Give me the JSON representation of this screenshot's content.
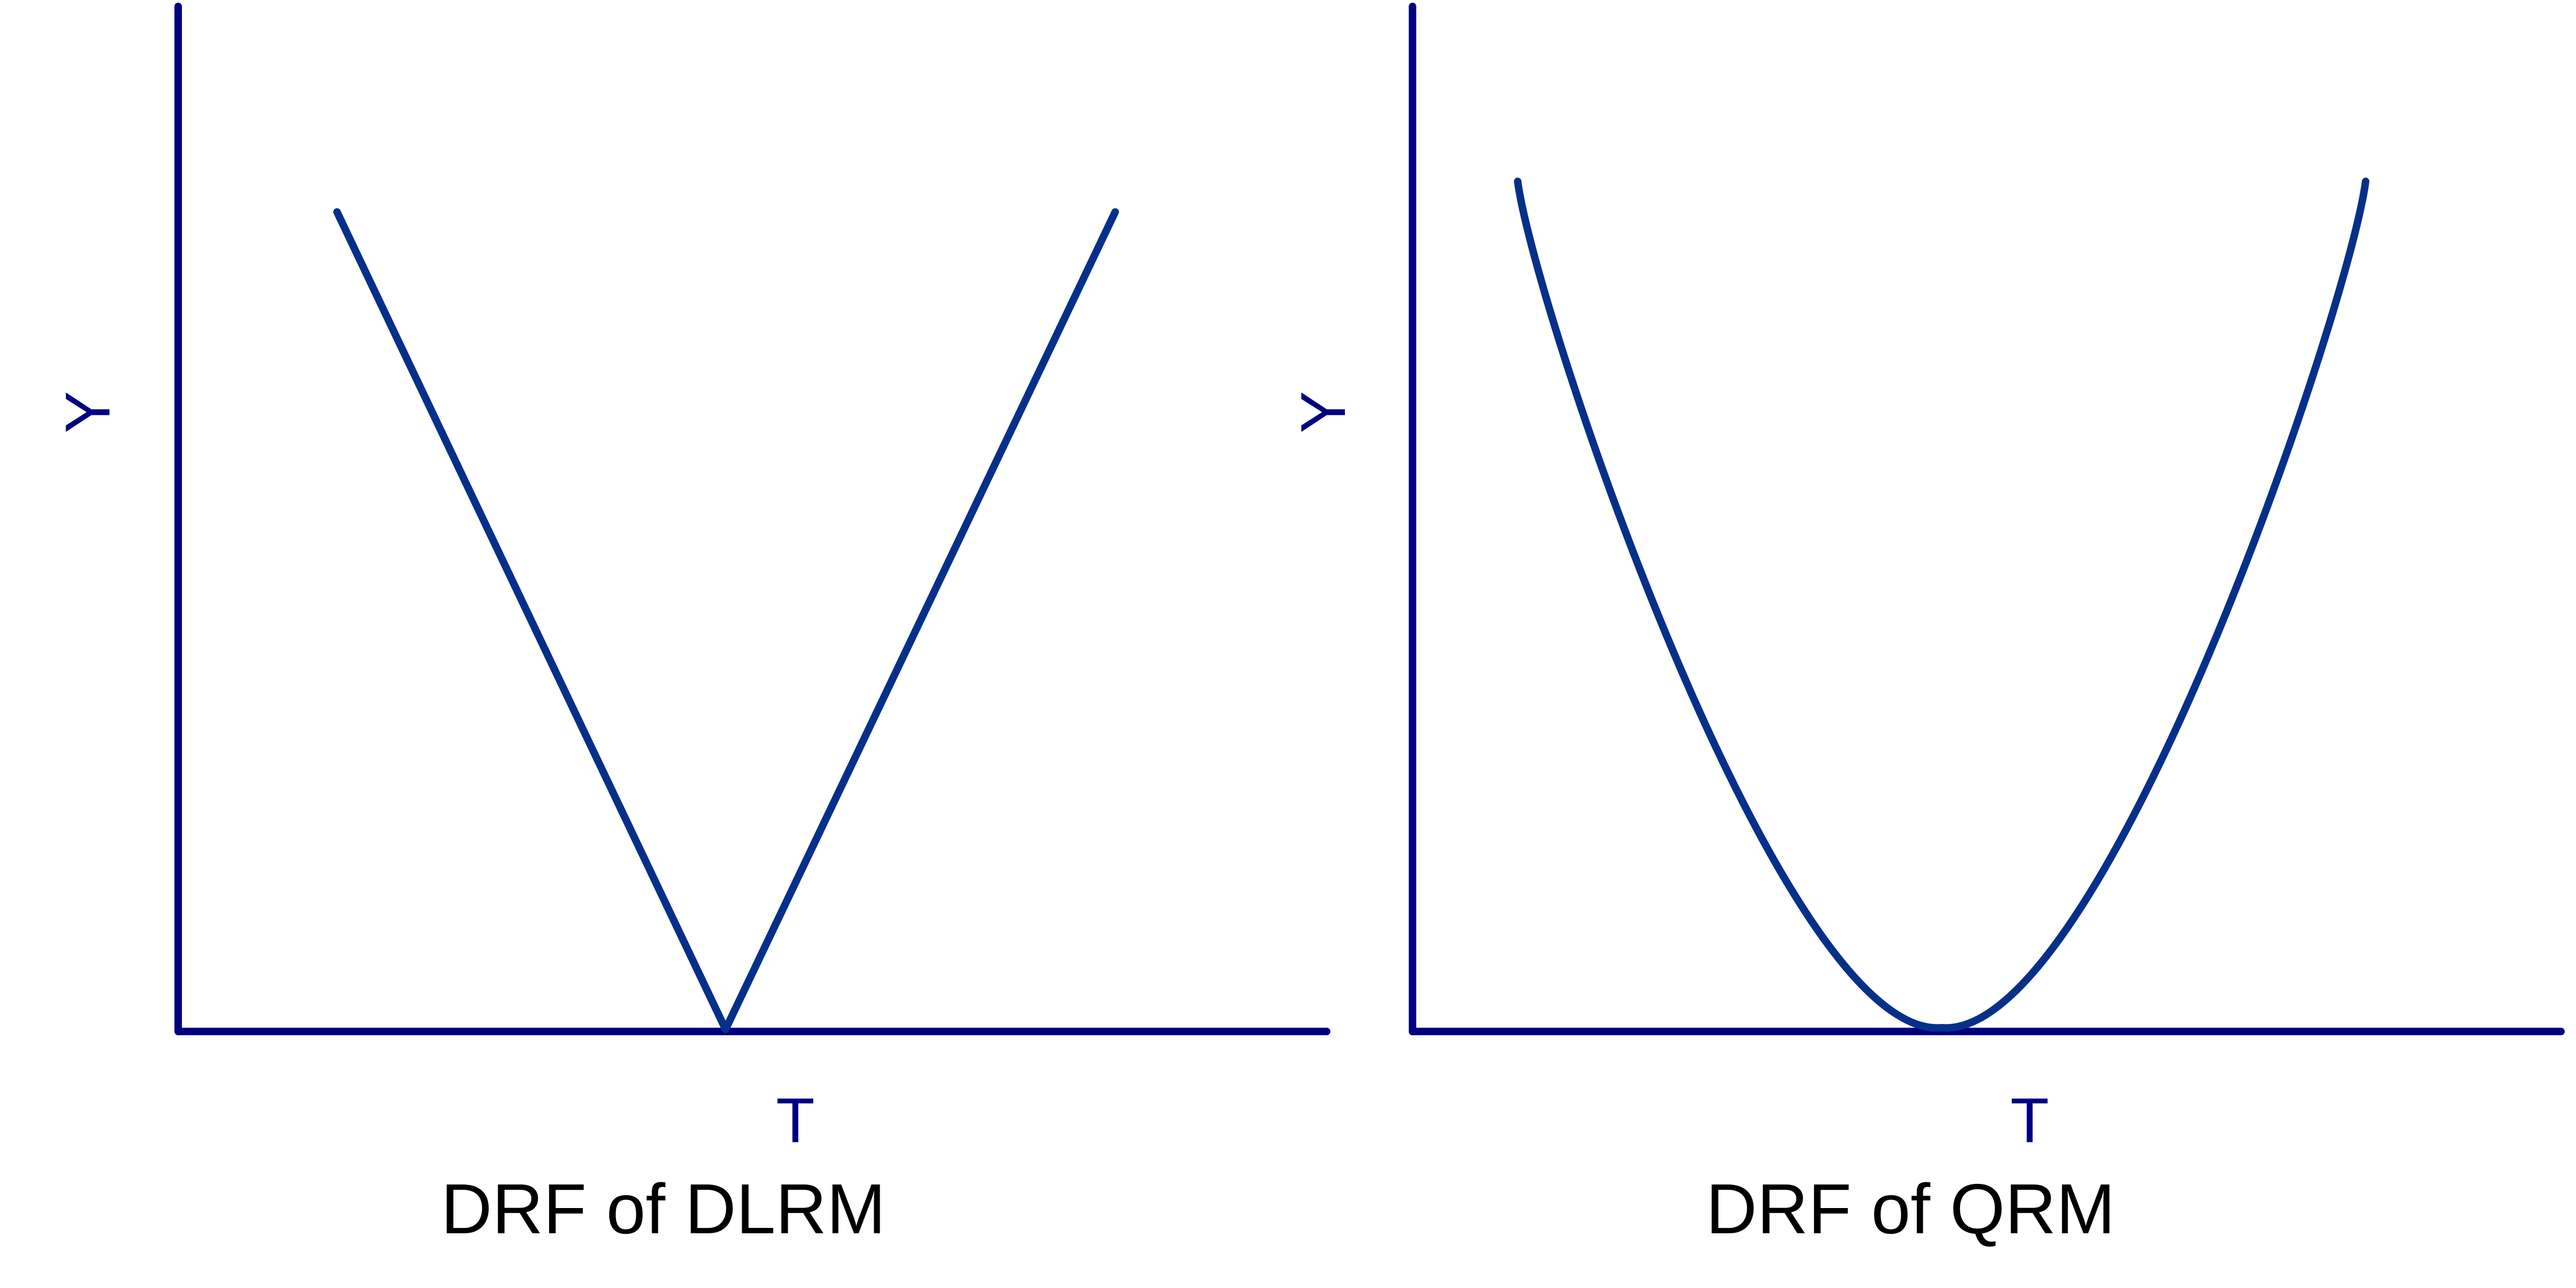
{
  "panels": [
    {
      "id": "dlrm",
      "caption": "DRF of DLRM",
      "y_label": "Y",
      "x_label": "T",
      "curve_shape": "v-shape (absolute value)"
    },
    {
      "id": "qrm",
      "caption": "DRF of QRM",
      "y_label": "Y",
      "x_label": "T",
      "curve_shape": "u-shape (quadratic)"
    }
  ],
  "colors": {
    "axis": "#000080",
    "curve": "#05308a",
    "caption": "#000000",
    "background": "#ffffff"
  }
}
